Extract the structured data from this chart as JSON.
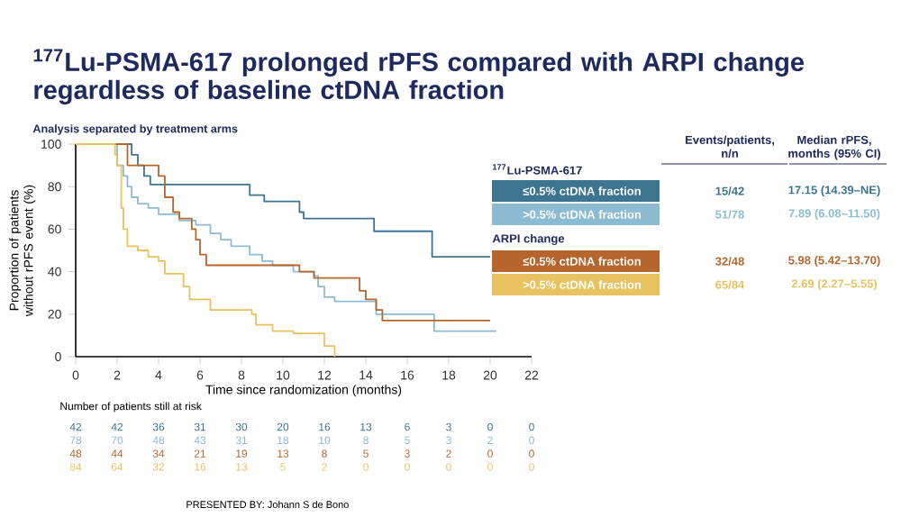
{
  "chart_data": {
    "type": "step",
    "title": "$^{177}$Lu-PSMA-617 prolonged rPFS compared with ARPI change regardless of baseline ctDNA fraction",
    "subtitle": "Analysis separated by treatment arms",
    "xlabel": "Time since randomization (months)",
    "ylabel": "Proportion of patients without rPFS event (%)",
    "xlim": [
      0,
      22
    ],
    "ylim": [
      0,
      100
    ],
    "xticks": [
      0,
      2,
      4,
      6,
      8,
      10,
      12,
      14,
      16,
      18,
      20,
      22
    ],
    "yticks": [
      0,
      20,
      40,
      60,
      80,
      100
    ],
    "legend": "right",
    "series": [
      {
        "name": "≤0.5% ctDNA fraction",
        "color": "#3d7590",
        "x": [
          0,
          2.7,
          3.0,
          3.3,
          3.6,
          8.4,
          9.1,
          10.8,
          11.0,
          14.4,
          17.2,
          20.0
        ],
        "values": [
          100,
          95,
          90,
          85,
          81,
          76,
          73,
          68,
          65,
          59,
          47,
          47
        ]
      },
      {
        "name": ">0.5% ctDNA fraction",
        "color": "#8dbcd2",
        "x": [
          0,
          2.0,
          2.3,
          2.5,
          2.7,
          3.0,
          3.5,
          4.0,
          5.0,
          5.8,
          6.5,
          7.0,
          7.5,
          8.4,
          9.0,
          9.5,
          10.5,
          11.5,
          11.7,
          12.0,
          12.5,
          14.5,
          17.3,
          20.3
        ],
        "values": [
          100,
          90,
          85,
          80,
          75,
          72,
          70,
          67,
          64,
          62,
          58,
          55,
          52,
          48,
          45,
          43,
          40,
          38,
          33,
          28,
          26,
          20,
          12,
          12
        ]
      },
      {
        "name": "≤0.5% ctDNA fraction",
        "color": "#b6652c",
        "x": [
          0,
          2.5,
          4.0,
          4.3,
          4.7,
          5.0,
          5.6,
          5.8,
          6.0,
          6.3,
          10.8,
          11.5,
          13.7,
          14.0,
          14.5,
          14.8,
          20.0
        ],
        "values": [
          100,
          90,
          85,
          75,
          68,
          65,
          60,
          55,
          48,
          43,
          40,
          37,
          31,
          27,
          22,
          17,
          17
        ]
      },
      {
        "name": ">0.5% ctDNA fraction",
        "color": "#e8c25e",
        "x": [
          0,
          1.9,
          2.0,
          2.2,
          2.3,
          2.5,
          3.0,
          3.5,
          4.0,
          4.3,
          5.2,
          5.5,
          6.5,
          8.5,
          8.7,
          9.5,
          10.5,
          11.7,
          12.0,
          12.5
        ],
        "values": [
          100,
          95,
          90,
          70,
          60,
          52,
          50,
          47,
          45,
          39,
          33,
          27,
          22,
          20,
          15,
          12,
          11,
          11,
          5,
          0
        ]
      }
    ],
    "annotations": [
      "$^{177}$Lu-PSMA-617",
      "ARPI change",
      "Events/patients, n/n",
      "Median rPFS, months (95% CI)",
      "15/42",
      "51/78",
      "32/48",
      "65/84",
      "17.15 (14.39–NE)",
      "7.89 (6.08–11.50)",
      "5.98 (5.42–13.70)",
      "2.69 (2.27–5.55)",
      "Number of patients still at risk",
      "42",
      "42",
      "36",
      "31",
      "30",
      "20",
      "16",
      "13",
      "6",
      "3",
      "0",
      "0",
      "78",
      "70",
      "48",
      "43",
      "31",
      "18",
      "10",
      "8",
      "5",
      "3",
      "2",
      "0",
      "48",
      "44",
      "34",
      "21",
      "19",
      "13",
      "8",
      "5",
      "3",
      "2",
      "0",
      "0",
      "84",
      "64",
      "32",
      "16",
      "13",
      "5",
      "2",
      "0",
      "0",
      "0",
      "0",
      "0",
      "PRESENTED BY: Johann S de Bono"
    ]
  }
}
